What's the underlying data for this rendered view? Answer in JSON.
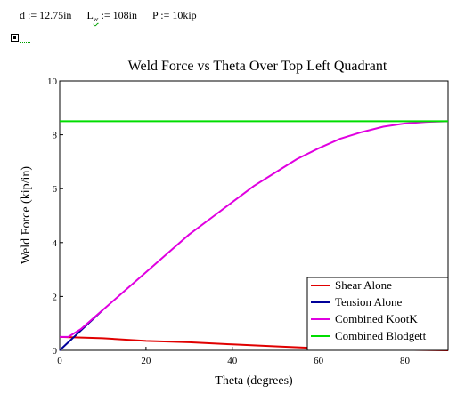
{
  "definitions": {
    "d": "d := 12.75in",
    "lw_name": "L",
    "lw_sub": "w",
    "lw_rest": ":= 108in",
    "p": "P := 10kip"
  },
  "chart_data": {
    "type": "line",
    "title": "Weld Force vs Theta Over Top Left Quadrant",
    "xlabel": "Theta (degrees)",
    "ylabel": "Weld Force (kip/in)",
    "xlim": [
      0,
      90
    ],
    "ylim": [
      0,
      10
    ],
    "xticks": [
      0,
      20,
      40,
      60,
      80
    ],
    "yticks": [
      0,
      2,
      4,
      6,
      8,
      10
    ],
    "grid": false,
    "legend_position": "bottom-right",
    "series": [
      {
        "name": "Shear Alone",
        "color": "#e00000",
        "x": [
          0,
          10,
          20,
          30,
          40,
          50,
          60,
          70,
          80,
          90
        ],
        "y": [
          0.5,
          0.45,
          0.35,
          0.3,
          0.22,
          0.15,
          0.08,
          0.04,
          0.02,
          0.0
        ]
      },
      {
        "name": "Tension Alone",
        "color": "#000099",
        "x": [
          0,
          2,
          4,
          6,
          8,
          10
        ],
        "y": [
          0.0,
          0.3,
          0.6,
          0.9,
          1.2,
          1.5
        ]
      },
      {
        "name": "Combined KootK",
        "color": "#e000e0",
        "x": [
          0,
          2,
          5,
          10,
          15,
          20,
          25,
          30,
          35,
          40,
          45,
          50,
          55,
          60,
          65,
          70,
          75,
          80,
          85,
          90
        ],
        "y": [
          0.5,
          0.5,
          0.8,
          1.5,
          2.2,
          2.9,
          3.6,
          4.3,
          4.9,
          5.5,
          6.1,
          6.6,
          7.1,
          7.5,
          7.85,
          8.1,
          8.3,
          8.42,
          8.48,
          8.5
        ]
      },
      {
        "name": "Combined Blodgett",
        "color": "#00dd00",
        "x": [
          0,
          90
        ],
        "y": [
          8.5,
          8.5
        ]
      }
    ]
  }
}
